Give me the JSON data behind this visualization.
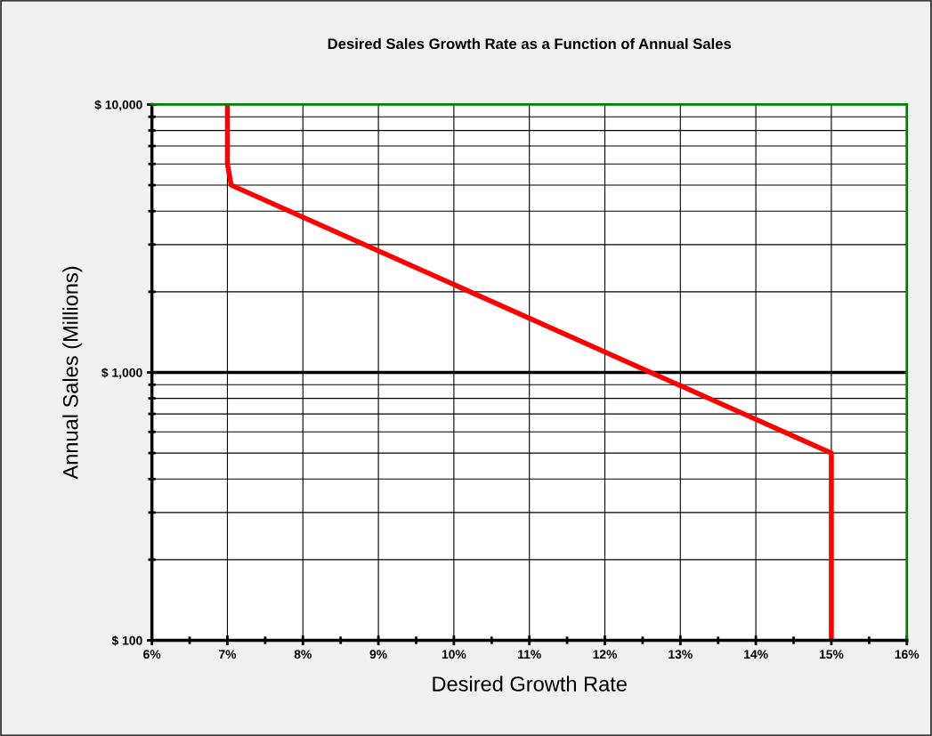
{
  "chart_data": {
    "type": "line",
    "title": "Desired Sales Growth Rate as a Function of Annual Sales",
    "xlabel": "Desired Growth Rate",
    "ylabel": "Annual Sales (Millions)",
    "series": [
      {
        "color": "#ff0000",
        "x": [
          15,
          15,
          7.05,
          7,
          7
        ],
        "values": [
          100,
          500,
          5000,
          6000,
          10000
        ]
      }
    ],
    "log": "y",
    "xlim": [
      6,
      16
    ],
    "ylim": [
      100,
      10000
    ],
    "xticks": [
      {
        "value": 6,
        "label": "6%"
      },
      {
        "value": 7,
        "label": "7%"
      },
      {
        "value": 8,
        "label": "8%"
      },
      {
        "value": 9,
        "label": "9%"
      },
      {
        "value": 10,
        "label": "10%"
      },
      {
        "value": 11,
        "label": "11%"
      },
      {
        "value": 12,
        "label": "12%"
      },
      {
        "value": 13,
        "label": "13%"
      },
      {
        "value": 14,
        "label": "14%"
      },
      {
        "value": 15,
        "label": "15%"
      },
      {
        "value": 16,
        "label": "16%"
      }
    ],
    "yticks": [
      {
        "value": 100,
        "label": "$ 100"
      },
      {
        "value": 1000,
        "label": "$ 1,000"
      },
      {
        "value": 10000,
        "label": "$ 10,000"
      }
    ],
    "ref_lines": [
      {
        "axis": "y",
        "value": 1000,
        "color": "#000000"
      }
    ],
    "grid": true,
    "marker": "none",
    "line_style": "solid"
  }
}
